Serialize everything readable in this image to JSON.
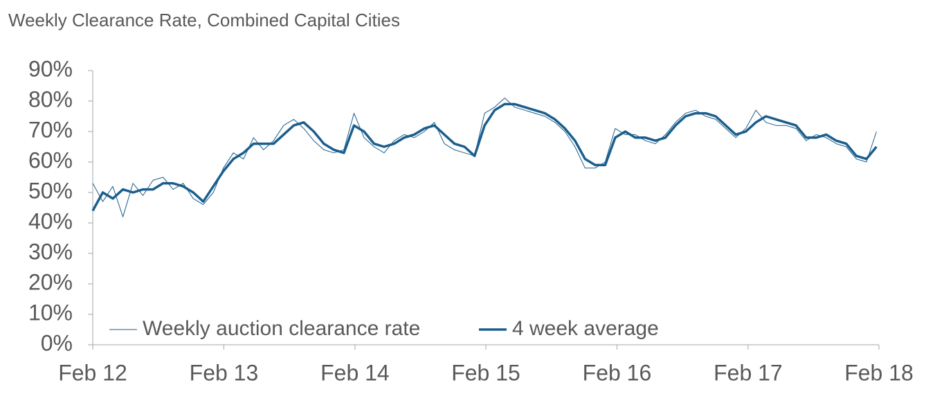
{
  "chart_data": {
    "type": "line",
    "title": "Weekly Clearance Rate, Combined Capital Cities",
    "x": [
      0,
      4,
      8,
      12,
      16,
      20,
      24,
      28,
      32,
      36,
      40,
      44,
      48,
      52,
      56,
      60,
      64,
      68,
      72,
      76,
      80,
      84,
      88,
      92,
      96,
      100,
      104,
      108,
      112,
      116,
      120,
      124,
      128,
      132,
      136,
      140,
      144,
      148,
      152,
      156,
      160,
      164,
      168,
      172,
      176,
      180,
      184,
      188,
      192,
      196,
      200,
      204,
      208,
      212,
      216,
      220,
      224,
      228,
      232,
      236,
      240,
      244,
      248,
      252,
      256,
      260,
      264,
      268,
      272,
      276,
      280,
      284,
      288,
      292,
      296,
      300,
      304,
      308,
      312
    ],
    "series": [
      {
        "name": "Weekly auction clearance rate",
        "color": "#1b5e8c",
        "width": 1,
        "values": [
          53,
          47,
          52,
          42,
          53,
          49,
          54,
          55,
          51,
          53,
          48,
          46,
          50,
          58,
          63,
          61,
          68,
          64,
          67,
          72,
          74,
          71,
          67,
          64,
          63,
          64,
          76,
          68,
          65,
          63,
          67,
          69,
          68,
          70,
          73,
          66,
          64,
          63,
          62,
          76,
          78,
          81,
          78,
          77,
          76,
          75,
          73,
          70,
          65,
          58,
          58,
          60,
          71,
          69,
          69,
          67,
          66,
          69,
          73,
          76,
          77,
          75,
          74,
          71,
          68,
          71,
          77,
          73,
          72,
          72,
          71,
          67,
          69,
          68,
          66,
          65,
          61,
          60,
          70
        ]
      },
      {
        "name": "4 week average",
        "color": "#1b5e8c",
        "width": 3.5,
        "values": [
          44,
          50,
          48,
          51,
          50,
          51,
          51,
          53,
          53,
          52,
          50,
          47,
          52,
          57,
          61,
          63,
          66,
          66,
          66,
          69,
          72,
          73,
          70,
          66,
          64,
          63,
          72,
          70,
          66,
          65,
          66,
          68,
          69,
          71,
          72,
          69,
          66,
          65,
          62,
          72,
          77,
          79,
          79,
          78,
          77,
          76,
          74,
          71,
          67,
          61,
          59,
          59,
          68,
          70,
          68,
          68,
          67,
          68,
          72,
          75,
          76,
          76,
          75,
          72,
          69,
          70,
          73,
          75,
          74,
          73,
          72,
          68,
          68,
          69,
          67,
          66,
          62,
          61,
          65
        ]
      }
    ],
    "xlim": [
      0,
      313
    ],
    "xticks": [
      {
        "value": 0,
        "label": "Feb 12"
      },
      {
        "value": 52.2,
        "label": "Feb 13"
      },
      {
        "value": 104.4,
        "label": "Feb 14"
      },
      {
        "value": 156.5,
        "label": "Feb 15"
      },
      {
        "value": 208.7,
        "label": "Feb 16"
      },
      {
        "value": 260.9,
        "label": "Feb 17"
      },
      {
        "value": 313,
        "label": "Feb 18"
      }
    ],
    "ylim": [
      0,
      90
    ],
    "yticks": [
      {
        "value": 0,
        "label": "0%"
      },
      {
        "value": 10,
        "label": "10%"
      },
      {
        "value": 20,
        "label": "20%"
      },
      {
        "value": 30,
        "label": "30%"
      },
      {
        "value": 40,
        "label": "40%"
      },
      {
        "value": 50,
        "label": "50%"
      },
      {
        "value": 60,
        "label": "60%"
      },
      {
        "value": 70,
        "label": "70%"
      },
      {
        "value": 80,
        "label": "80%"
      },
      {
        "value": 90,
        "label": "90%"
      }
    ],
    "legend": "bottom-left"
  }
}
